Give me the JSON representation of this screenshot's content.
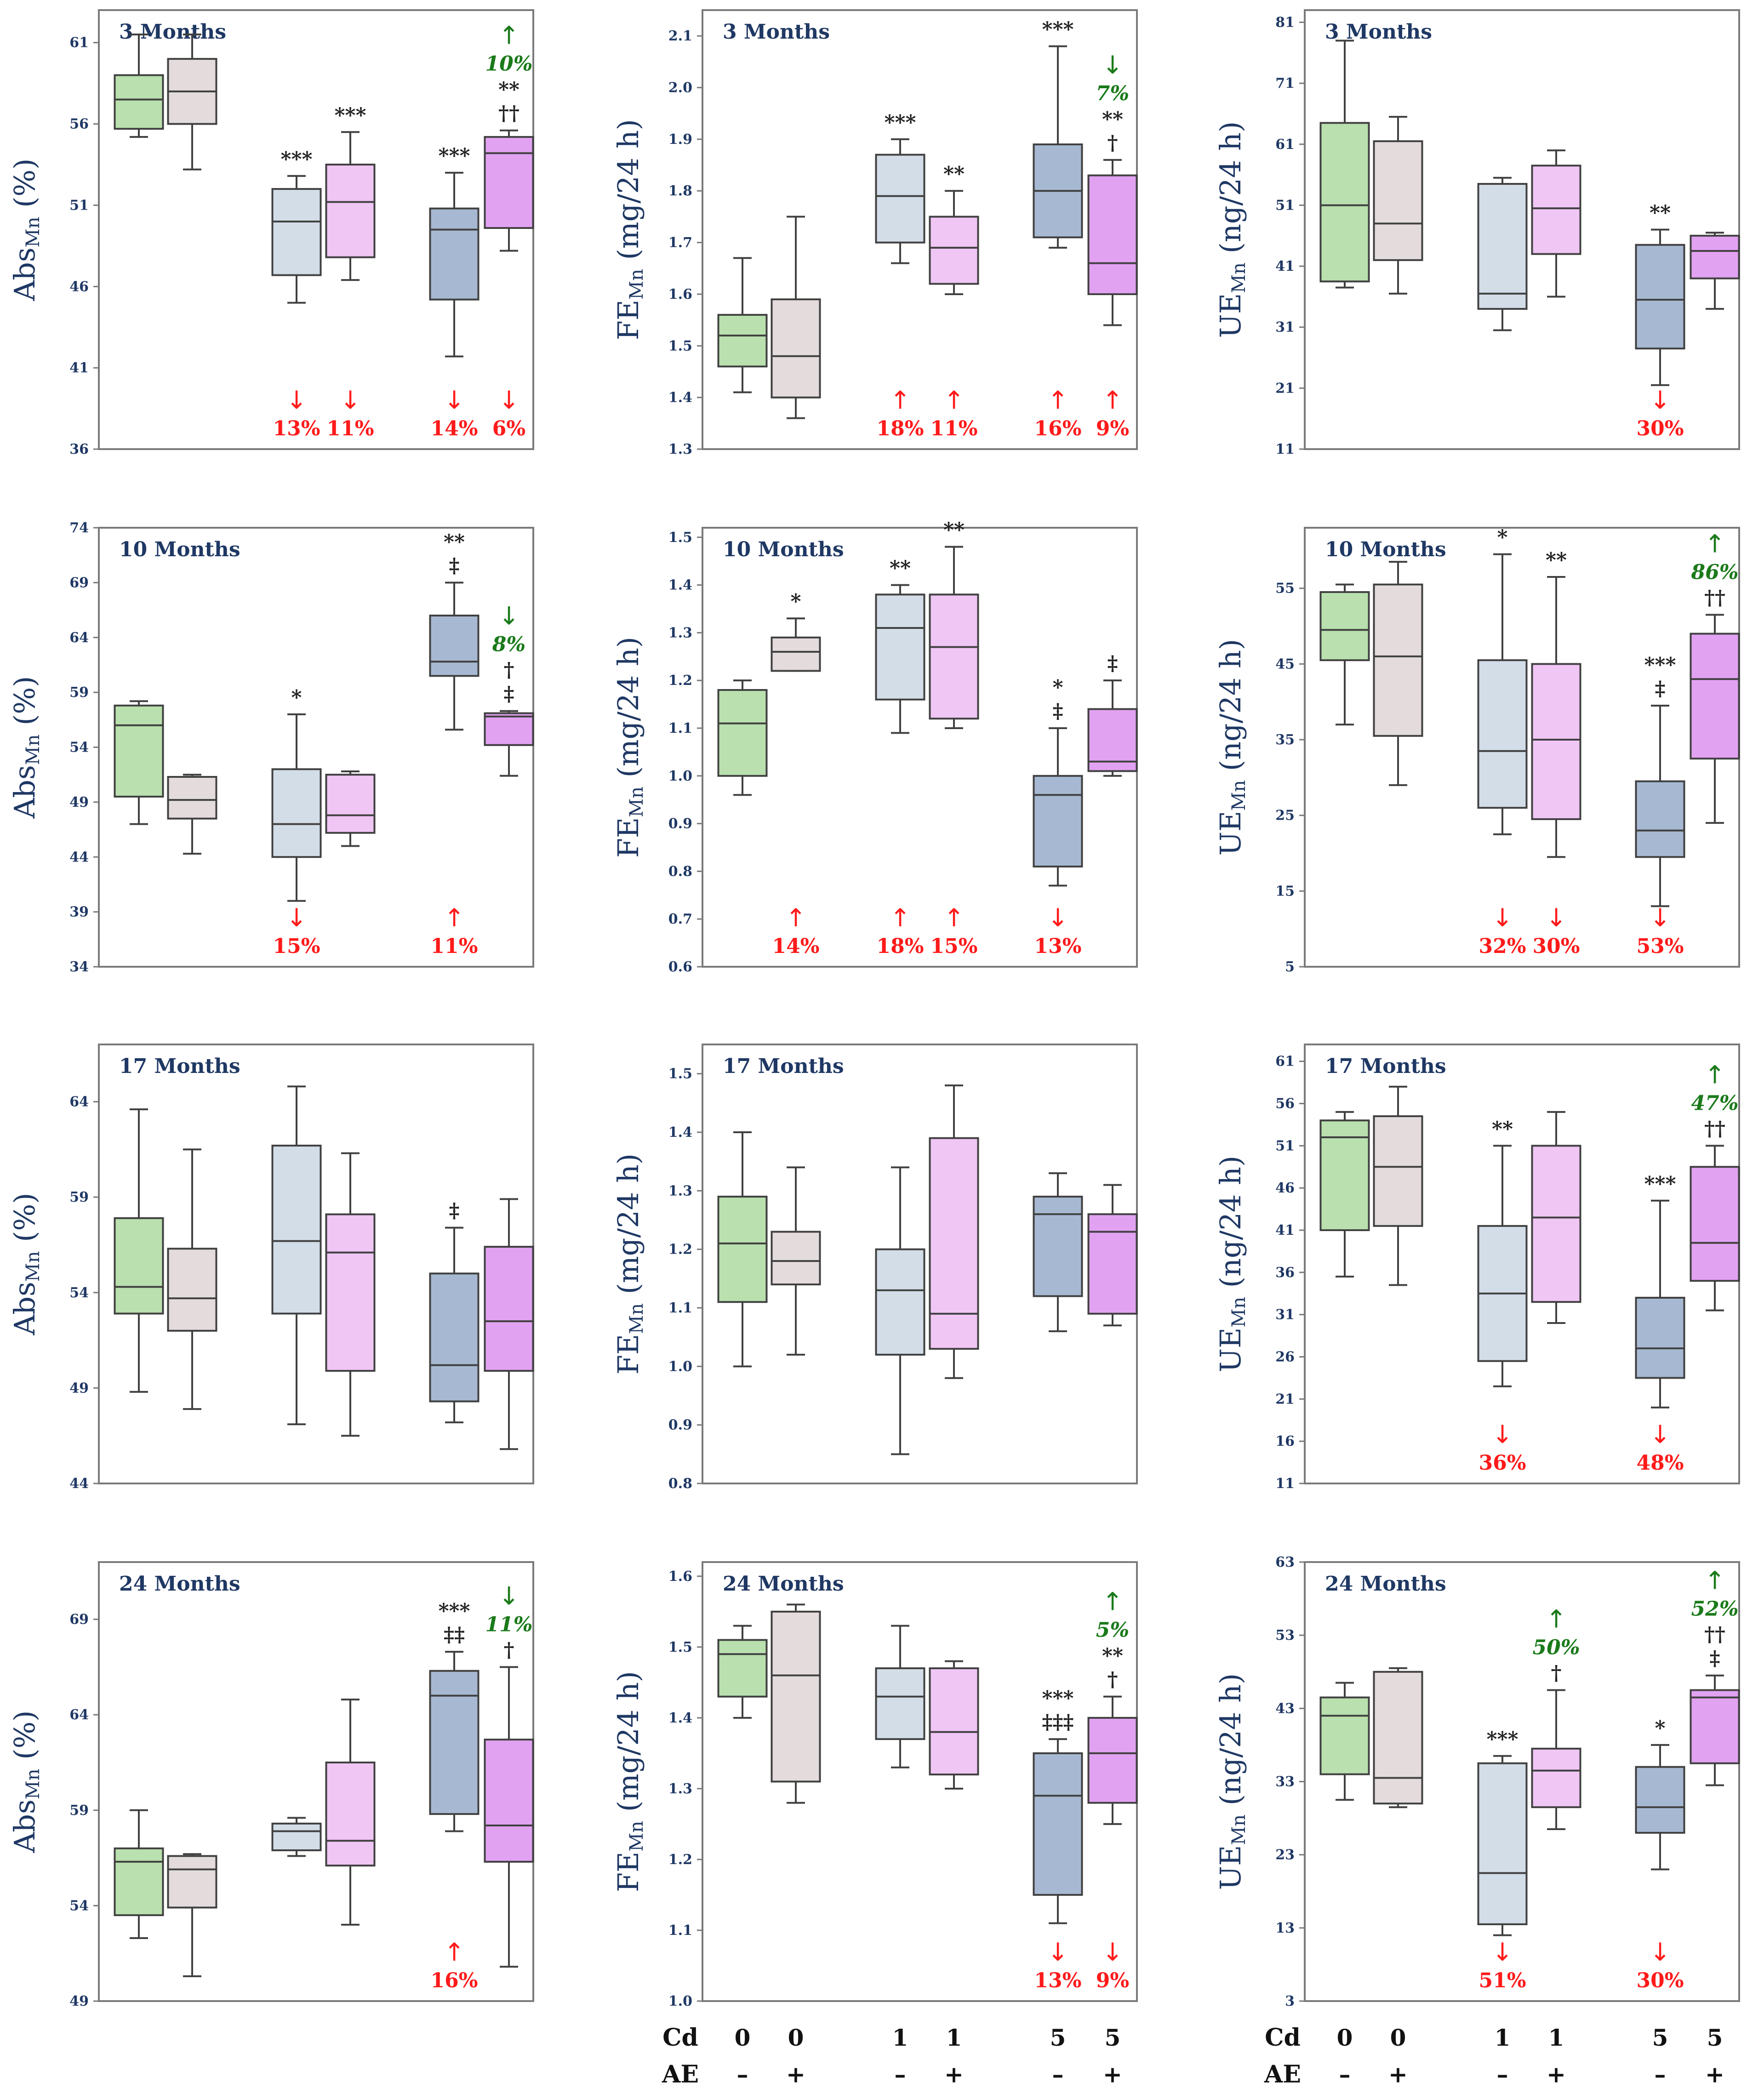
{
  "chart_data": [
    {
      "type": "box",
      "title": "3 Months",
      "ylabel_main": "Abs",
      "ylabel_sub": "Mn",
      "ylabel_unit": " (%)",
      "ylim": [
        36,
        63
      ],
      "ticks": [
        36,
        41,
        46,
        51,
        56,
        61
      ],
      "boxes": [
        {
          "min": 55.2,
          "q1": 55.7,
          "median": 57.5,
          "q3": 59,
          "max": 61.5
        },
        {
          "min": 53.2,
          "q1": 56,
          "median": 58,
          "q3": 60,
          "max": 61.5
        },
        {
          "min": 45,
          "q1": 46.7,
          "median": 50,
          "q3": 52,
          "max": 52.8
        },
        {
          "min": 46.4,
          "q1": 47.8,
          "median": 51.2,
          "q3": 53.5,
          "max": 55.5
        },
        {
          "min": 41.7,
          "q1": 45.2,
          "median": 49.5,
          "q3": 50.8,
          "max": 53
        },
        {
          "min": 48.2,
          "q1": 49.6,
          "median": 54.2,
          "q3": 55.2,
          "max": 55.6
        }
      ],
      "sig": [
        [],
        [],
        [
          "***"
        ],
        [
          "***"
        ],
        [
          "***"
        ],
        [
          "††",
          "**"
        ]
      ],
      "green": [
        [],
        [],
        [],
        [],
        [],
        [
          "↑",
          "10%"
        ]
      ],
      "red": [
        [],
        [],
        [
          "↓",
          "13%"
        ],
        [
          "↓",
          "11%"
        ],
        [
          "↓",
          "14%"
        ],
        [
          "↓",
          "6%"
        ]
      ]
    },
    {
      "type": "box",
      "title": "3 Months",
      "ylabel_main": "FE",
      "ylabel_sub": "Mn",
      "ylabel_unit": " (mg/24 h)",
      "ylim": [
        1.3,
        2.15
      ],
      "ticks": [
        1.3,
        1.4,
        1.5,
        1.6,
        1.7,
        1.8,
        1.9,
        2.0,
        2.1
      ],
      "boxes": [
        {
          "min": 1.41,
          "q1": 1.46,
          "median": 1.52,
          "q3": 1.56,
          "max": 1.67
        },
        {
          "min": 1.36,
          "q1": 1.4,
          "median": 1.48,
          "q3": 1.59,
          "max": 1.75
        },
        {
          "min": 1.66,
          "q1": 1.7,
          "median": 1.79,
          "q3": 1.87,
          "max": 1.9
        },
        {
          "min": 1.6,
          "q1": 1.62,
          "median": 1.69,
          "q3": 1.75,
          "max": 1.8
        },
        {
          "min": 1.69,
          "q1": 1.71,
          "median": 1.8,
          "q3": 1.89,
          "max": 2.08
        },
        {
          "min": 1.54,
          "q1": 1.6,
          "median": 1.66,
          "q3": 1.83,
          "max": 1.86
        }
      ],
      "sig": [
        [],
        [],
        [
          "***"
        ],
        [
          "**"
        ],
        [
          "***"
        ],
        [
          "†",
          "**"
        ]
      ],
      "green": [
        [],
        [],
        [],
        [],
        [],
        [
          "↓",
          "7%"
        ]
      ],
      "red": [
        [],
        [],
        [
          "↑",
          "18%"
        ],
        [
          "↑",
          "11%"
        ],
        [
          "↑",
          "16%"
        ],
        [
          "↑",
          "9%"
        ]
      ]
    },
    {
      "type": "box",
      "title": "3 Months",
      "ylabel_main": "UE",
      "ylabel_sub": "Mn",
      "ylabel_unit": " (ng/24 h)",
      "ylim": [
        11,
        83
      ],
      "ticks": [
        11,
        21,
        31,
        41,
        51,
        61,
        71,
        81
      ],
      "boxes": [
        {
          "min": 37.5,
          "q1": 38.5,
          "median": 51,
          "q3": 64.5,
          "max": 78
        },
        {
          "min": 36.5,
          "q1": 42,
          "median": 48,
          "q3": 61.5,
          "max": 65.5
        },
        {
          "min": 30.5,
          "q1": 34,
          "median": 36.5,
          "q3": 54.5,
          "max": 55.5
        },
        {
          "min": 36,
          "q1": 43,
          "median": 50.5,
          "q3": 57.5,
          "max": 60
        },
        {
          "min": 21.5,
          "q1": 27.5,
          "median": 35.5,
          "q3": 44.5,
          "max": 47
        },
        {
          "min": 34,
          "q1": 39,
          "median": 43.5,
          "q3": 46,
          "max": 46.5
        }
      ],
      "sig": [
        [],
        [],
        [],
        [],
        [
          "**"
        ],
        []
      ],
      "green": [
        [],
        [],
        [],
        [],
        [],
        []
      ],
      "red": [
        [],
        [],
        [],
        [],
        [
          "↓",
          "30%"
        ],
        []
      ]
    },
    {
      "type": "box",
      "title": "10 Months",
      "ylabel_main": "Abs",
      "ylabel_sub": "Mn",
      "ylabel_unit": " (%)",
      "ylim": [
        34,
        74
      ],
      "ticks": [
        34,
        39,
        44,
        49,
        54,
        59,
        64,
        69,
        74
      ],
      "boxes": [
        {
          "min": 47,
          "q1": 49.5,
          "median": 56,
          "q3": 57.8,
          "max": 58.2
        },
        {
          "min": 44.3,
          "q1": 47.5,
          "median": 49.2,
          "q3": 51.3,
          "max": 51.5
        },
        {
          "min": 40,
          "q1": 44,
          "median": 47,
          "q3": 52,
          "max": 57
        },
        {
          "min": 45,
          "q1": 46.2,
          "median": 47.8,
          "q3": 51.5,
          "max": 51.8
        },
        {
          "min": 55.6,
          "q1": 60.5,
          "median": 61.8,
          "q3": 66,
          "max": 69
        },
        {
          "min": 51.4,
          "q1": 54.2,
          "median": 56.8,
          "q3": 57.1,
          "max": 57.3
        }
      ],
      "sig": [
        [],
        [],
        [
          "*"
        ],
        [],
        [
          "‡",
          "**"
        ],
        [
          "‡",
          "†"
        ]
      ],
      "green": [
        [],
        [],
        [],
        [],
        [],
        [
          "↓",
          "8%"
        ]
      ],
      "red": [
        [],
        [],
        [
          "↓",
          "15%"
        ],
        [],
        [
          "↑",
          "11%"
        ],
        []
      ]
    },
    {
      "type": "box",
      "title": "10 Months",
      "ylabel_main": "FE",
      "ylabel_sub": "Mn",
      "ylabel_unit": " (mg/24 h)",
      "ylim": [
        0.6,
        1.52
      ],
      "ticks": [
        0.6,
        0.7,
        0.8,
        0.9,
        1.0,
        1.1,
        1.2,
        1.3,
        1.4,
        1.5
      ],
      "boxes": [
        {
          "min": 0.96,
          "q1": 1.0,
          "median": 1.11,
          "q3": 1.18,
          "max": 1.2
        },
        {
          "min": 1.22,
          "q1": 1.22,
          "median": 1.26,
          "q3": 1.29,
          "max": 1.33
        },
        {
          "min": 1.09,
          "q1": 1.16,
          "median": 1.31,
          "q3": 1.38,
          "max": 1.4
        },
        {
          "min": 1.1,
          "q1": 1.12,
          "median": 1.27,
          "q3": 1.38,
          "max": 1.48
        },
        {
          "min": 0.77,
          "q1": 0.81,
          "median": 0.96,
          "q3": 1.0,
          "max": 1.1
        },
        {
          "min": 1.0,
          "q1": 1.01,
          "median": 1.03,
          "q3": 1.14,
          "max": 1.2
        }
      ],
      "sig": [
        [],
        [
          "*"
        ],
        [
          "**"
        ],
        [
          "**"
        ],
        [
          "‡",
          "*"
        ],
        [
          "‡"
        ]
      ],
      "green": [
        [],
        [],
        [],
        [],
        [],
        []
      ],
      "red": [
        [],
        [
          "↑",
          "14%"
        ],
        [
          "↑",
          "18%"
        ],
        [
          "↑",
          "15%"
        ],
        [
          "↓",
          "13%"
        ],
        []
      ]
    },
    {
      "type": "box",
      "title": "10 Months",
      "ylabel_main": "UE",
      "ylabel_sub": "Mn",
      "ylabel_unit": " (ng/24 h)",
      "ylim": [
        5,
        63
      ],
      "ticks": [
        5,
        15,
        25,
        35,
        45,
        55
      ],
      "boxes": [
        {
          "min": 37,
          "q1": 45.5,
          "median": 49.5,
          "q3": 54.5,
          "max": 55.5
        },
        {
          "min": 29,
          "q1": 35.5,
          "median": 46,
          "q3": 55.5,
          "max": 58.5
        },
        {
          "min": 22.5,
          "q1": 26,
          "median": 33.5,
          "q3": 45.5,
          "max": 59.5
        },
        {
          "min": 19.5,
          "q1": 24.5,
          "median": 35,
          "q3": 45,
          "max": 56.5
        },
        {
          "min": 13,
          "q1": 19.5,
          "median": 23,
          "q3": 29.5,
          "max": 39.5
        },
        {
          "min": 24,
          "q1": 32.5,
          "median": 43,
          "q3": 49,
          "max": 51.5
        }
      ],
      "sig": [
        [],
        [],
        [
          "*"
        ],
        [
          "**"
        ],
        [
          "‡",
          "***"
        ],
        [
          "††"
        ]
      ],
      "green": [
        [],
        [],
        [],
        [],
        [],
        [
          "↑",
          "86%"
        ]
      ],
      "red": [
        [],
        [],
        [
          "↓",
          "32%"
        ],
        [
          "↓",
          "30%"
        ],
        [
          "↓",
          "53%"
        ],
        []
      ]
    },
    {
      "type": "box",
      "title": "17 Months",
      "ylabel_main": "Abs",
      "ylabel_sub": "Mn",
      "ylabel_unit": " (%)",
      "ylim": [
        44,
        67
      ],
      "ticks": [
        44,
        49,
        54,
        59,
        64
      ],
      "boxes": [
        {
          "min": 48.8,
          "q1": 52.9,
          "median": 54.3,
          "q3": 57.9,
          "max": 63.6
        },
        {
          "min": 47.9,
          "q1": 52,
          "median": 53.7,
          "q3": 56.3,
          "max": 61.5
        },
        {
          "min": 47.1,
          "q1": 52.9,
          "median": 56.7,
          "q3": 61.7,
          "max": 64.8
        },
        {
          "min": 46.5,
          "q1": 49.9,
          "median": 56.1,
          "q3": 58.1,
          "max": 61.3
        },
        {
          "min": 47.2,
          "q1": 48.3,
          "median": 50.2,
          "q3": 55,
          "max": 57.4
        },
        {
          "min": 45.8,
          "q1": 49.9,
          "median": 52.5,
          "q3": 56.4,
          "max": 58.9
        }
      ],
      "sig": [
        [],
        [],
        [],
        [],
        [
          "‡"
        ],
        []
      ],
      "green": [
        [],
        [],
        [],
        [],
        [],
        []
      ],
      "red": [
        [],
        [],
        [],
        [],
        [],
        []
      ]
    },
    {
      "type": "box",
      "title": "17 Months",
      "ylabel_main": "FE",
      "ylabel_sub": "Mn",
      "ylabel_unit": " (mg/24 h)",
      "ylim": [
        0.8,
        1.55
      ],
      "ticks": [
        0.8,
        0.9,
        1.0,
        1.1,
        1.2,
        1.3,
        1.4,
        1.5
      ],
      "boxes": [
        {
          "min": 1.0,
          "q1": 1.11,
          "median": 1.21,
          "q3": 1.29,
          "max": 1.4
        },
        {
          "min": 1.02,
          "q1": 1.14,
          "median": 1.18,
          "q3": 1.23,
          "max": 1.34
        },
        {
          "min": 0.85,
          "q1": 1.02,
          "median": 1.13,
          "q3": 1.2,
          "max": 1.34
        },
        {
          "min": 0.98,
          "q1": 1.03,
          "median": 1.09,
          "q3": 1.39,
          "max": 1.48
        },
        {
          "min": 1.06,
          "q1": 1.12,
          "median": 1.26,
          "q3": 1.29,
          "max": 1.33
        },
        {
          "min": 1.07,
          "q1": 1.09,
          "median": 1.23,
          "q3": 1.26,
          "max": 1.31
        }
      ],
      "sig": [
        [],
        [],
        [],
        [],
        [],
        []
      ],
      "green": [
        [],
        [],
        [],
        [],
        [],
        []
      ],
      "red": [
        [],
        [],
        [],
        [],
        [],
        []
      ]
    },
    {
      "type": "box",
      "title": "17 Months",
      "ylabel_main": "UE",
      "ylabel_sub": "Mn",
      "ylabel_unit": " (ng/24 h)",
      "ylim": [
        11,
        63
      ],
      "ticks": [
        11,
        16,
        21,
        26,
        31,
        36,
        41,
        46,
        51,
        56,
        61
      ],
      "boxes": [
        {
          "min": 35.5,
          "q1": 41,
          "median": 52,
          "q3": 54,
          "max": 55
        },
        {
          "min": 34.5,
          "q1": 41.5,
          "median": 48.5,
          "q3": 54.5,
          "max": 58
        },
        {
          "min": 22.5,
          "q1": 25.5,
          "median": 33.5,
          "q3": 41.5,
          "max": 51
        },
        {
          "min": 30,
          "q1": 32.5,
          "median": 42.5,
          "q3": 51,
          "max": 55
        },
        {
          "min": 20,
          "q1": 23.5,
          "median": 27,
          "q3": 33,
          "max": 44.5
        },
        {
          "min": 31.5,
          "q1": 35,
          "median": 39.5,
          "q3": 48.5,
          "max": 51
        }
      ],
      "sig": [
        [],
        [],
        [
          "**"
        ],
        [],
        [
          "***"
        ],
        [
          "††"
        ]
      ],
      "green": [
        [],
        [],
        [],
        [],
        [],
        [
          "↑",
          "47%"
        ]
      ],
      "red": [
        [],
        [],
        [
          "↓",
          "36%"
        ],
        [],
        [
          "↓",
          "48%"
        ],
        []
      ]
    },
    {
      "type": "box",
      "title": "24 Months",
      "ylabel_main": "Abs",
      "ylabel_sub": "Mn",
      "ylabel_unit": " (%)",
      "ylim": [
        49,
        72
      ],
      "ticks": [
        49,
        54,
        59,
        64,
        69
      ],
      "boxes": [
        {
          "min": 52.3,
          "q1": 53.5,
          "median": 56.3,
          "q3": 57,
          "max": 59
        },
        {
          "min": 50.3,
          "q1": 53.9,
          "median": 55.9,
          "q3": 56.6,
          "max": 56.7
        },
        {
          "min": 56.6,
          "q1": 56.9,
          "median": 57.9,
          "q3": 58.3,
          "max": 58.6
        },
        {
          "min": 53,
          "q1": 56.1,
          "median": 57.4,
          "q3": 61.5,
          "max": 64.8
        },
        {
          "min": 57.9,
          "q1": 58.8,
          "median": 65,
          "q3": 66.3,
          "max": 67.3
        },
        {
          "min": 50.8,
          "q1": 56.3,
          "median": 58.2,
          "q3": 62.7,
          "max": 66.5
        }
      ],
      "sig": [
        [],
        [],
        [],
        [],
        [
          "‡‡",
          "***"
        ],
        [
          "†"
        ]
      ],
      "green": [
        [],
        [],
        [],
        [],
        [],
        [
          "↓",
          "11%"
        ]
      ],
      "red": [
        [],
        [],
        [],
        [],
        [
          "↑",
          "16%"
        ],
        []
      ]
    },
    {
      "type": "box",
      "title": "24 Months",
      "ylabel_main": "FE",
      "ylabel_sub": "Mn",
      "ylabel_unit": " (mg/24 h)",
      "ylim": [
        1.0,
        1.62
      ],
      "ticks": [
        1.0,
        1.1,
        1.2,
        1.3,
        1.4,
        1.5,
        1.6
      ],
      "boxes": [
        {
          "min": 1.4,
          "q1": 1.43,
          "median": 1.49,
          "q3": 1.51,
          "max": 1.53
        },
        {
          "min": 1.28,
          "q1": 1.31,
          "median": 1.46,
          "q3": 1.55,
          "max": 1.56
        },
        {
          "min": 1.33,
          "q1": 1.37,
          "median": 1.43,
          "q3": 1.47,
          "max": 1.53
        },
        {
          "min": 1.3,
          "q1": 1.32,
          "median": 1.38,
          "q3": 1.47,
          "max": 1.48
        },
        {
          "min": 1.11,
          "q1": 1.15,
          "median": 1.29,
          "q3": 1.35,
          "max": 1.37
        },
        {
          "min": 1.25,
          "q1": 1.28,
          "median": 1.35,
          "q3": 1.4,
          "max": 1.43
        }
      ],
      "sig": [
        [],
        [],
        [],
        [],
        [
          "‡‡‡",
          "***"
        ],
        [
          "†",
          "**"
        ]
      ],
      "green": [
        [],
        [],
        [],
        [],
        [],
        [
          "↑",
          "5%"
        ]
      ],
      "red": [
        [],
        [],
        [],
        [],
        [
          "↓",
          "13%"
        ],
        [
          "↓",
          "9%"
        ]
      ]
    },
    {
      "type": "box",
      "title": "24 Months",
      "ylabel_main": "UE",
      "ylabel_sub": "Mn",
      "ylabel_unit": " (ng/24 h)",
      "ylim": [
        3,
        63
      ],
      "ticks": [
        3,
        13,
        23,
        33,
        43,
        53,
        63
      ],
      "boxes": [
        {
          "min": 30.5,
          "q1": 34,
          "median": 42,
          "q3": 44.5,
          "max": 46.5
        },
        {
          "min": 29.5,
          "q1": 30,
          "median": 33.5,
          "q3": 48,
          "max": 48.5
        },
        {
          "min": 12,
          "q1": 13.5,
          "median": 20.5,
          "q3": 35.5,
          "max": 36.5
        },
        {
          "min": 26.5,
          "q1": 29.5,
          "median": 34.5,
          "q3": 37.5,
          "max": 45.5
        },
        {
          "min": 21,
          "q1": 26,
          "median": 29.5,
          "q3": 35,
          "max": 38
        },
        {
          "min": 32.5,
          "q1": 35.5,
          "median": 44.5,
          "q3": 45.5,
          "max": 47.5
        }
      ],
      "sig": [
        [],
        [],
        [
          "***"
        ],
        [
          "†"
        ],
        [
          "*"
        ],
        [
          "‡",
          "††"
        ]
      ],
      "green": [
        [],
        [],
        [],
        [
          "↑",
          "50%"
        ],
        [],
        [
          "↑",
          "52%"
        ]
      ],
      "red": [
        [],
        [],
        [
          "↓",
          "51%"
        ],
        [],
        [
          "↓",
          "30%"
        ],
        []
      ]
    }
  ],
  "group_colors": [
    "#b9e0ae",
    "#e4dcdc",
    "#d3dde8",
    "#f0c6f5",
    "#a7b9d2",
    "#e2a2f2"
  ],
  "xaxis": {
    "cd_label": "Cd",
    "ae_label": "AE",
    "cd_values": [
      "0",
      "0",
      "1",
      "1",
      "5",
      "5"
    ],
    "ae_values": [
      "–",
      "+",
      "–",
      "+",
      "–",
      "+"
    ]
  }
}
